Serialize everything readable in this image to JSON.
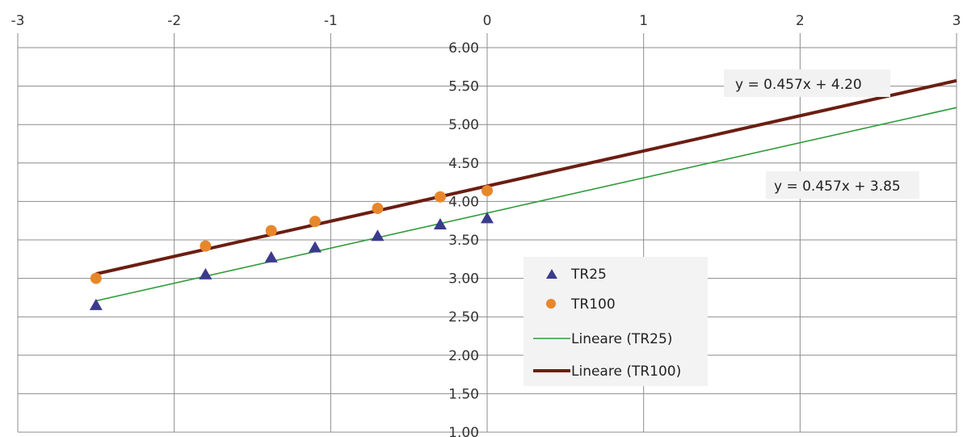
{
  "chart_data": {
    "type": "scatter",
    "title": "",
    "xlabel": "",
    "ylabel": "",
    "xlim": [
      -3,
      3
    ],
    "ylim": [
      1.0,
      6.0
    ],
    "grid": true,
    "legend_position": "center-right",
    "x_ticks": [
      {
        "value": -3,
        "label": "-3"
      },
      {
        "value": -2,
        "label": "-2"
      },
      {
        "value": -1,
        "label": "-1"
      },
      {
        "value": 0,
        "label": "0"
      },
      {
        "value": 1,
        "label": "1"
      },
      {
        "value": 2,
        "label": "2"
      },
      {
        "value": 3,
        "label": "3"
      }
    ],
    "y_ticks": [
      {
        "value": 1.0,
        "label": "1.00"
      },
      {
        "value": 1.5,
        "label": "1.50"
      },
      {
        "value": 2.0,
        "label": "2.00"
      },
      {
        "value": 2.5,
        "label": "2.50"
      },
      {
        "value": 3.0,
        "label": "3.00"
      },
      {
        "value": 3.5,
        "label": "3.50"
      },
      {
        "value": 4.0,
        "label": "4.00"
      },
      {
        "value": 4.5,
        "label": "4.50"
      },
      {
        "value": 5.0,
        "label": "5.00"
      },
      {
        "value": 5.5,
        "label": "5.50"
      },
      {
        "value": 6.0,
        "label": "6.00"
      }
    ],
    "series": [
      {
        "name": "TR25",
        "marker": "triangle",
        "color": "#3b3b8c",
        "x": [
          -2.5,
          -1.8,
          -1.38,
          -1.1,
          -0.7,
          -0.3,
          0.0
        ],
        "y": [
          2.65,
          3.05,
          3.27,
          3.4,
          3.55,
          3.7,
          3.78
        ]
      },
      {
        "name": "TR100",
        "marker": "circle",
        "color": "#e8872a",
        "x": [
          -2.5,
          -1.8,
          -1.38,
          -1.1,
          -0.7,
          -0.3,
          0.0
        ],
        "y": [
          3.0,
          3.42,
          3.62,
          3.74,
          3.91,
          4.06,
          4.14
        ]
      }
    ],
    "trendlines": [
      {
        "name": "Lineare (TR25)",
        "slope": 0.457,
        "intercept": 3.85,
        "x_range": [
          -2.5,
          3
        ],
        "color": "#2e9b3a",
        "width": 1.6,
        "equation": "y = 0.457x + 3.85"
      },
      {
        "name": "Lineare (TR100)",
        "slope": 0.457,
        "intercept": 4.2,
        "x_range": [
          -2.5,
          3
        ],
        "color": "#6b1e12",
        "width": 4,
        "equation": "y = 0.457x + 4.20"
      }
    ]
  }
}
